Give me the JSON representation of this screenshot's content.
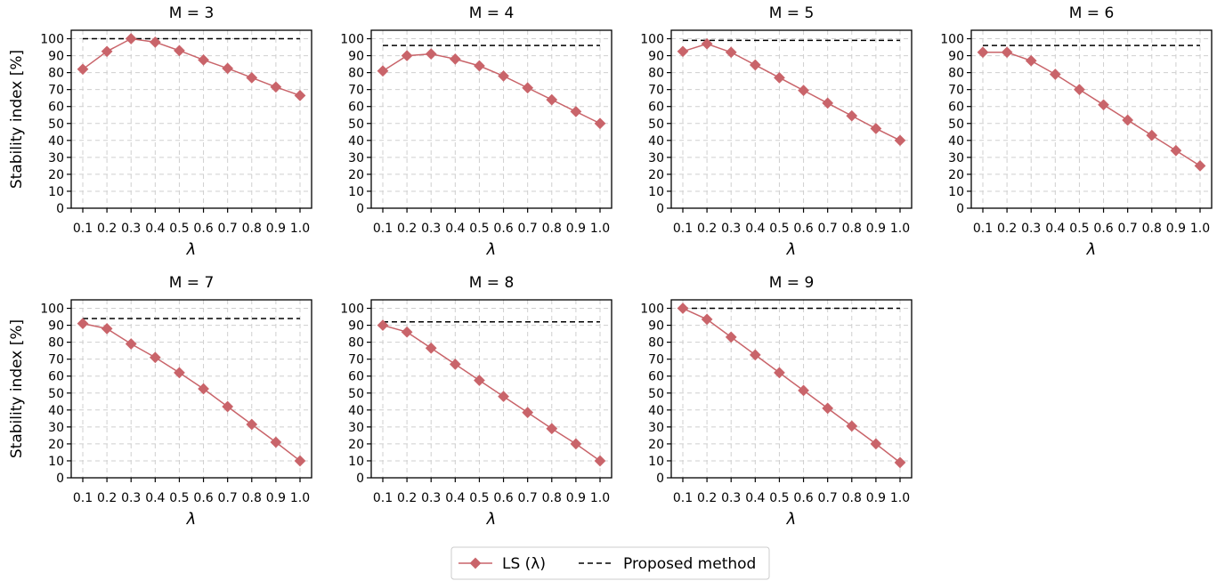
{
  "chart_data": {
    "type": "line",
    "ylabel": "Stability index [%]",
    "xlabel": "λ",
    "x": [
      0.1,
      0.2,
      0.3,
      0.4,
      0.5,
      0.6,
      0.7,
      0.8,
      0.9,
      1.0
    ],
    "x_tick_labels": [
      "0.1",
      "0.2",
      "0.3",
      "0.4",
      "0.5",
      "0.6",
      "0.7",
      "0.8",
      "0.9",
      "1.0"
    ],
    "y_ticks": [
      0,
      10,
      20,
      30,
      40,
      50,
      60,
      70,
      80,
      90,
      100
    ],
    "ylim": [
      0,
      105
    ],
    "grid": true,
    "legend": {
      "placement": "bottom-center",
      "entries": [
        {
          "key": "ls",
          "label": "LS (λ)",
          "color": "#c9646a",
          "marker": "diamond"
        },
        {
          "key": "proposed",
          "label": "Proposed method",
          "color": "#000000",
          "style": "dashed"
        }
      ]
    },
    "panels": [
      {
        "title": "M = 3",
        "ls": [
          82,
          92.5,
          100,
          98,
          93,
          87.5,
          82.5,
          77,
          71.5,
          66.5
        ],
        "proposed": 100
      },
      {
        "title": "M = 4",
        "ls": [
          81,
          90,
          91,
          88,
          84,
          78,
          71,
          64,
          57,
          50
        ],
        "proposed": 96
      },
      {
        "title": "M = 5",
        "ls": [
          92.5,
          97,
          92,
          84.5,
          77,
          69.5,
          62,
          54.5,
          47,
          40
        ],
        "proposed": 99
      },
      {
        "title": "M = 6",
        "ls": [
          92,
          92,
          87,
          79,
          70,
          61,
          52,
          43,
          34,
          25
        ],
        "proposed": 96
      },
      {
        "title": "M = 7",
        "ls": [
          91,
          88,
          79,
          71,
          62,
          52.5,
          42,
          31.5,
          21,
          10
        ],
        "proposed": 94
      },
      {
        "title": "M = 8",
        "ls": [
          90,
          86,
          76.5,
          67,
          57.5,
          48,
          38.5,
          29,
          20,
          10
        ],
        "proposed": 92
      },
      {
        "title": "M = 9",
        "ls": [
          100,
          93.5,
          83,
          72.5,
          62,
          51.5,
          41,
          30.5,
          20,
          9
        ],
        "proposed": 100
      }
    ]
  }
}
